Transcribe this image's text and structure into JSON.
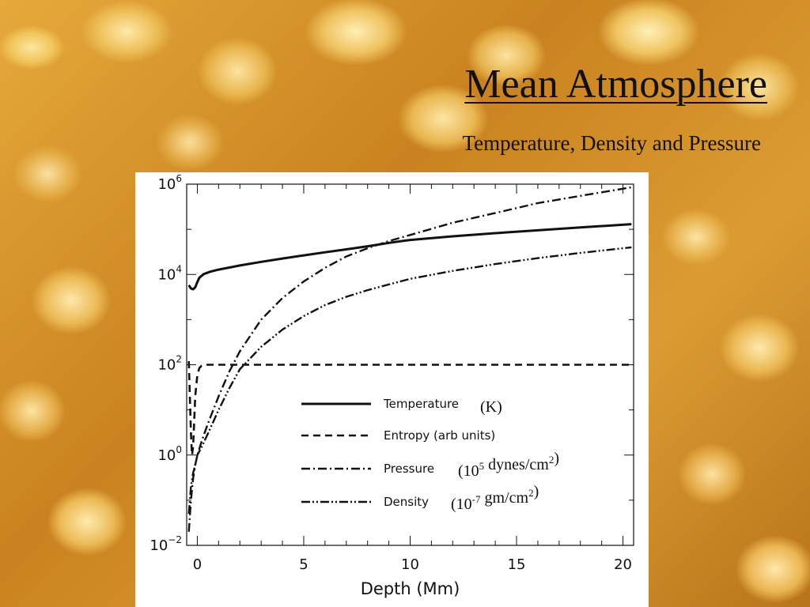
{
  "slide": {
    "title": "Mean Atmosphere",
    "subtitle": "Temperature, Density and Pressure"
  },
  "chart_data": {
    "type": "line",
    "title": "",
    "xlabel": "Depth (Mm)",
    "ylabel": "",
    "xlim": [
      -0.5,
      20.5
    ],
    "ylim": [
      0.01,
      1000000
    ],
    "y_scale": "log",
    "grid": false,
    "legend_position": "center-right inside",
    "x_ticks": [
      {
        "value": 0,
        "label": "0"
      },
      {
        "value": 5,
        "label": "5"
      },
      {
        "value": 10,
        "label": "10"
      },
      {
        "value": 15,
        "label": "15"
      },
      {
        "value": 20,
        "label": "20"
      }
    ],
    "y_ticks": [
      {
        "value": 0.01,
        "base": "10",
        "exp": "−2"
      },
      {
        "value": 1,
        "base": "10",
        "exp": "0"
      },
      {
        "value": 100,
        "base": "10",
        "exp": "2"
      },
      {
        "value": 10000,
        "base": "10",
        "exp": "4"
      },
      {
        "value": 1000000,
        "base": "10",
        "exp": "6"
      }
    ],
    "series": [
      {
        "name": "Temperature",
        "unit": "(K)",
        "style": "solid",
        "x": [
          -0.4,
          -0.3,
          -0.2,
          -0.1,
          0,
          0.1,
          0.3,
          0.6,
          1,
          2,
          3,
          4,
          5,
          6,
          7,
          8,
          9,
          10,
          12,
          14,
          16,
          18,
          20.4
        ],
        "y": [
          5800,
          4900,
          4700,
          5200,
          6800,
          8500,
          10200,
          11500,
          12800,
          15800,
          19000,
          22500,
          26500,
          31000,
          36000,
          42000,
          50000,
          58000,
          70000,
          82000,
          95000,
          110000,
          130000
        ]
      },
      {
        "name": "Entropy (arb units)",
        "unit": "",
        "style": "dashed",
        "x": [
          -0.4,
          -0.35,
          -0.3,
          -0.25,
          -0.2,
          -0.15,
          -0.1,
          0,
          0.1,
          0.2,
          0.4,
          0.7,
          1,
          20.4
        ],
        "y": [
          120,
          20,
          3,
          1,
          1.5,
          5,
          20,
          60,
          85,
          95,
          100,
          100,
          100,
          100
        ]
      },
      {
        "name": "Pressure",
        "unit": "(10^5 dynes/cm^2)",
        "style": "dash-dot",
        "x": [
          -0.4,
          -0.3,
          -0.2,
          -0.1,
          0,
          0.2,
          0.5,
          1,
          1.5,
          2,
          3,
          4,
          5,
          6,
          7,
          8,
          9,
          10,
          12,
          14,
          16,
          18,
          20.4
        ],
        "y": [
          0.02,
          0.1,
          0.3,
          0.6,
          1,
          2,
          5,
          20,
          70,
          200,
          1000,
          3000,
          7000,
          14000,
          25000,
          38000,
          55000,
          75000,
          140000,
          230000,
          380000,
          550000,
          850000
        ]
      },
      {
        "name": "Density",
        "unit": "(10^-7 gm/cm^2)",
        "style": "dash-dot-dot",
        "x": [
          -0.4,
          -0.3,
          -0.2,
          -0.1,
          0,
          0.2,
          0.5,
          1,
          1.5,
          2,
          3,
          4,
          5,
          6,
          7,
          8,
          9,
          10,
          12,
          14,
          16,
          18,
          20.4
        ],
        "y": [
          0.05,
          0.2,
          0.4,
          0.6,
          1,
          1.5,
          3,
          10,
          30,
          80,
          250,
          600,
          1200,
          2100,
          3200,
          4500,
          6000,
          8000,
          12000,
          17000,
          23000,
          30000,
          40000
        ]
      }
    ]
  }
}
